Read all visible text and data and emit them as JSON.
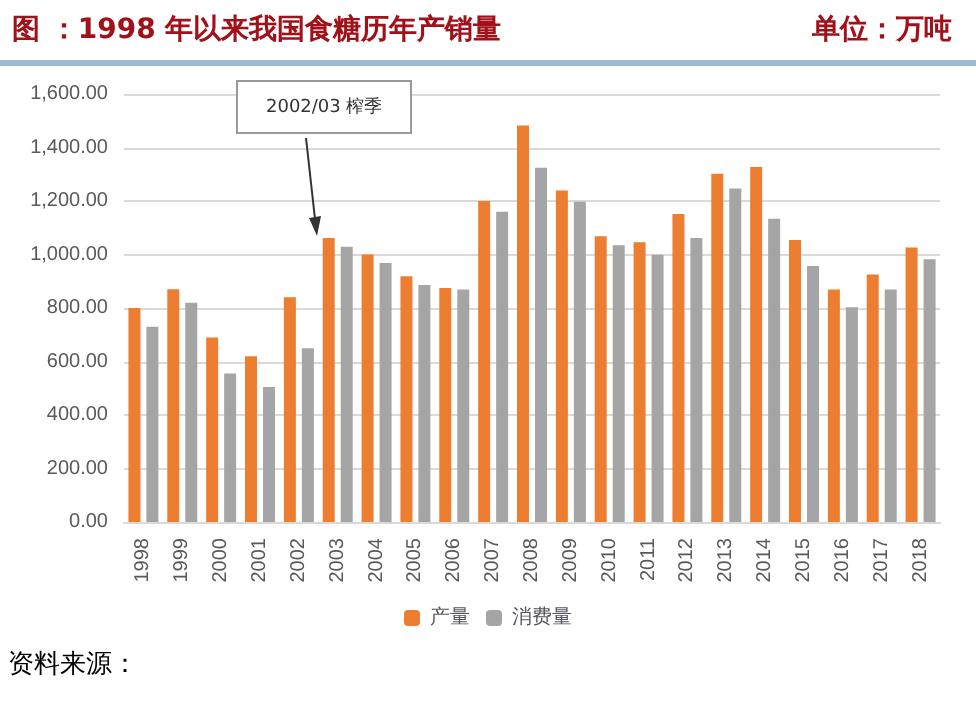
{
  "chart_data": {
    "type": "bar",
    "title": "图 ：1998 年以来我国食糖历年产销量",
    "subtitle": "单位：万吨",
    "categories": [
      "1998",
      "1999",
      "2000",
      "2001",
      "2002",
      "2003",
      "2004",
      "2005",
      "2006",
      "2007",
      "2008",
      "2009",
      "2010",
      "2011",
      "2012",
      "2013",
      "2014",
      "2015",
      "2016",
      "2017",
      "2018"
    ],
    "series": [
      {
        "name": "产量",
        "color": "#ed7d31",
        "values": [
          800,
          870,
          690,
          620,
          840,
          1062,
          1000,
          919,
          875,
          1200,
          1482,
          1239,
          1068,
          1046,
          1151,
          1302,
          1327,
          1054,
          869,
          925,
          1026
        ]
      },
      {
        "name": "消费量",
        "color": "#a5a5a5",
        "values": [
          730,
          820,
          555,
          505,
          650,
          1029,
          968,
          886,
          869,
          1160,
          1324,
          1197,
          1035,
          999,
          1062,
          1247,
          1134,
          957,
          803,
          869,
          982
        ]
      }
    ],
    "ylim": [
      0,
      1600
    ],
    "yticks": [
      {
        "value": 0,
        "label": "0.00"
      },
      {
        "value": 200,
        "label": "200.00"
      },
      {
        "value": 400,
        "label": "400.00"
      },
      {
        "value": 600,
        "label": "600.00"
      },
      {
        "value": 800,
        "label": "800.00"
      },
      {
        "value": 1000,
        "label": "1,000.00"
      },
      {
        "value": 1200,
        "label": "1,200.00"
      },
      {
        "value": 1400,
        "label": "1,400.00"
      },
      {
        "value": 1600,
        "label": "1,600.00"
      }
    ],
    "grid": "y",
    "legend": "bottom",
    "annotations": [
      "2002/03 榨季",
      "资料来源："
    ]
  }
}
